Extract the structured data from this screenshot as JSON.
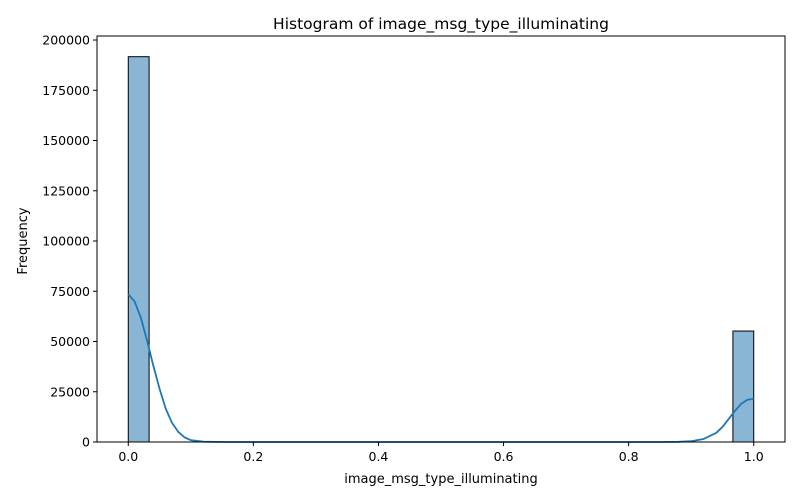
{
  "chart_data": {
    "type": "bar",
    "title": "Histogram of image_msg_type_illuminating",
    "xlabel": "image_msg_type_illuminating",
    "ylabel": "Frequency",
    "xlim": [
      -0.05,
      1.05
    ],
    "ylim": [
      0,
      202000
    ],
    "x_ticks": [
      0.0,
      0.2,
      0.4,
      0.6,
      0.8,
      1.0
    ],
    "x_tick_labels": [
      "0.0",
      "0.2",
      "0.4",
      "0.6",
      "0.8",
      "1.0"
    ],
    "y_ticks": [
      0,
      25000,
      50000,
      75000,
      100000,
      125000,
      150000,
      175000,
      200000
    ],
    "y_tick_labels": [
      "0",
      "25000",
      "50000",
      "75000",
      "100000",
      "125000",
      "150000",
      "175000",
      "200000"
    ],
    "bins": [
      {
        "x0": 0.0,
        "x1": 0.0333,
        "count": 191700
      },
      {
        "x0": 0.9667,
        "x1": 1.0,
        "count": 55200
      }
    ],
    "kde": {
      "x": [
        0.0,
        0.01,
        0.02,
        0.03,
        0.04,
        0.05,
        0.06,
        0.07,
        0.08,
        0.09,
        0.1,
        0.12,
        0.15,
        0.2,
        0.5,
        0.8,
        0.85,
        0.88,
        0.9,
        0.92,
        0.94,
        0.95,
        0.96,
        0.97,
        0.98,
        0.99,
        1.0
      ],
      "y": [
        73500,
        70000,
        62000,
        50500,
        38000,
        26500,
        16500,
        9500,
        5000,
        2300,
        900,
        150,
        0,
        0,
        0,
        0,
        0,
        100,
        400,
        1500,
        4500,
        7500,
        11500,
        15500,
        19000,
        21000,
        21500
      ]
    },
    "colors": {
      "bar_fill": "#8ab6d6",
      "bar_edge": "#000000",
      "kde_line": "#1f77b4"
    },
    "grid": false,
    "legend": "none"
  }
}
